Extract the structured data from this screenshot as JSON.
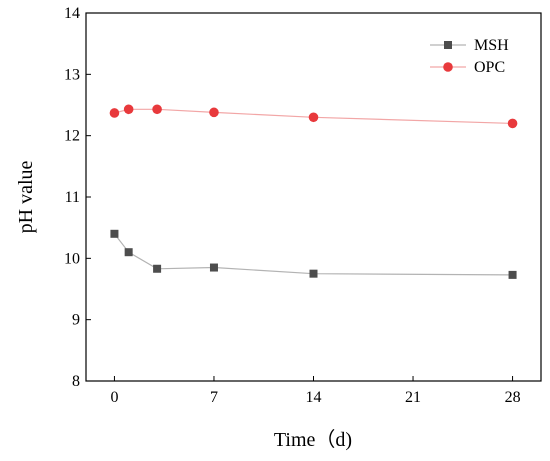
{
  "chart_data": {
    "type": "line",
    "xlabel": "Time（d)",
    "ylabel": "pH value",
    "xlim": [
      -2,
      30
    ],
    "ylim": [
      8,
      14
    ],
    "xticks": [
      0,
      7,
      14,
      21,
      28
    ],
    "yticks": [
      8,
      9,
      10,
      11,
      12,
      13,
      14
    ],
    "grid": false,
    "legend_position": "top-right",
    "series": [
      {
        "name": "MSH",
        "marker": "square",
        "color": "#4d4d4d",
        "line_color": "#b3b3b3",
        "x": [
          0,
          1,
          3,
          7,
          14,
          28
        ],
        "y": [
          10.4,
          10.1,
          9.83,
          9.85,
          9.75,
          9.73
        ]
      },
      {
        "name": "OPC",
        "marker": "circle",
        "color": "#e8393c",
        "line_color": "#f2a6a6",
        "x": [
          0,
          1,
          3,
          7,
          14,
          28
        ],
        "y": [
          12.37,
          12.43,
          12.43,
          12.38,
          12.3,
          12.2
        ]
      }
    ]
  }
}
